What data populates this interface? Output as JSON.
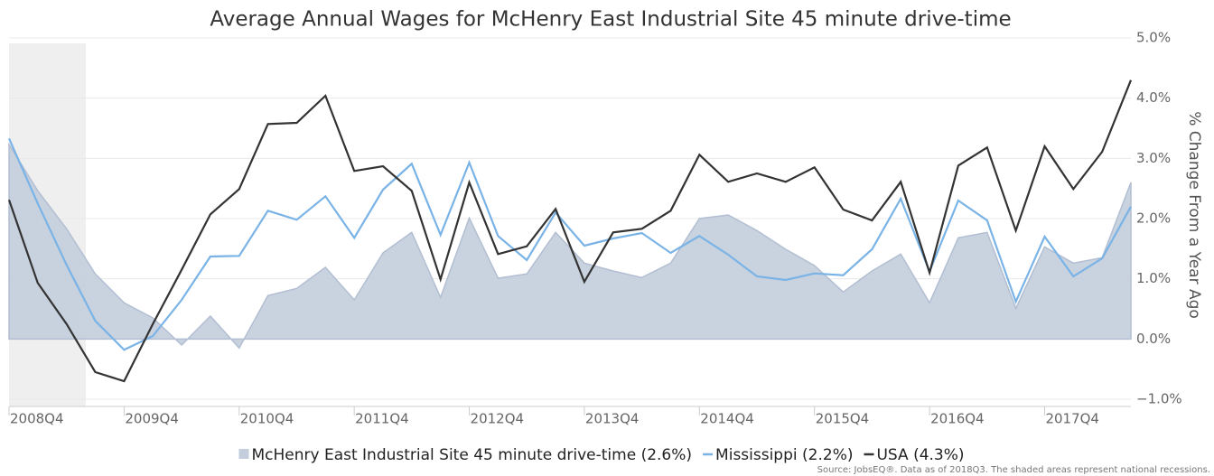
{
  "chart_data": {
    "type": "line",
    "title": "Average Annual Wages for McHenry East Industrial Site 45 minute drive-time",
    "y_label": "% Change From a Year Ago",
    "source": "Source: JobsEQ®. Data as of 2018Q3. The shaded areas represent national recessions.",
    "categories": [
      "2008Q4",
      null,
      null,
      null,
      "2009Q4",
      null,
      null,
      null,
      "2010Q4",
      null,
      null,
      null,
      "2011Q4",
      null,
      null,
      null,
      "2012Q4",
      null,
      null,
      null,
      "2013Q4",
      null,
      null,
      null,
      "2014Q4",
      null,
      null,
      null,
      "2015Q4",
      null,
      null,
      null,
      "2016Q4",
      null,
      null,
      null,
      "2017Q4",
      null,
      null,
      null
    ],
    "series": [
      {
        "name": "McHenry East Industrial Site 45 minute drive-time (2.6%)",
        "style": "area",
        "color": "#c3cddc",
        "values": [
          3.23,
          2.46,
          1.83,
          1.08,
          0.6,
          0.35,
          -0.1,
          0.38,
          -0.15,
          0.72,
          0.84,
          1.19,
          0.65,
          1.43,
          1.77,
          0.69,
          2.01,
          1.01,
          1.08,
          1.77,
          1.26,
          1.13,
          1.02,
          1.26,
          2.0,
          2.06,
          1.8,
          1.49,
          1.22,
          0.78,
          1.13,
          1.41,
          0.6,
          1.68,
          1.77,
          0.51,
          1.53,
          1.26,
          1.35,
          2.6
        ]
      },
      {
        "name": "Mississippi (2.2%)",
        "style": "line",
        "color": "#7ab3e6",
        "values": [
          3.33,
          2.25,
          1.23,
          0.3,
          -0.18,
          0.05,
          0.65,
          1.37,
          1.38,
          2.13,
          1.98,
          2.37,
          1.68,
          2.48,
          2.91,
          1.73,
          2.93,
          1.71,
          1.31,
          2.1,
          1.55,
          1.67,
          1.76,
          1.43,
          1.71,
          1.4,
          1.04,
          0.98,
          1.09,
          1.06,
          1.49,
          2.33,
          1.12,
          2.3,
          1.97,
          0.62,
          1.7,
          1.04,
          1.34,
          2.2
        ]
      },
      {
        "name": "USA (4.3%)",
        "style": "line",
        "color": "#333333",
        "values": [
          2.31,
          0.93,
          0.25,
          -0.55,
          -0.7,
          0.25,
          1.15,
          2.07,
          2.49,
          3.57,
          3.59,
          4.04,
          2.79,
          2.87,
          2.46,
          0.99,
          2.6,
          1.41,
          1.54,
          2.16,
          0.95,
          1.77,
          1.83,
          2.13,
          3.06,
          2.61,
          2.75,
          2.61,
          2.85,
          2.15,
          1.97,
          2.61,
          1.1,
          2.88,
          3.18,
          1.8,
          3.2,
          2.49,
          3.11,
          4.3
        ]
      }
    ],
    "ylim": [
      -1,
      5
    ],
    "yticks": [
      {
        "value": -1,
        "label": "−1.0%"
      },
      {
        "value": 0,
        "label": "0.0%"
      },
      {
        "value": 1,
        "label": "1.0%"
      },
      {
        "value": 2,
        "label": "2.0%"
      },
      {
        "value": 3,
        "label": "3.0%"
      },
      {
        "value": 4,
        "label": "4.0%"
      },
      {
        "value": 5,
        "label": "5.0%"
      }
    ],
    "grid": true
  }
}
